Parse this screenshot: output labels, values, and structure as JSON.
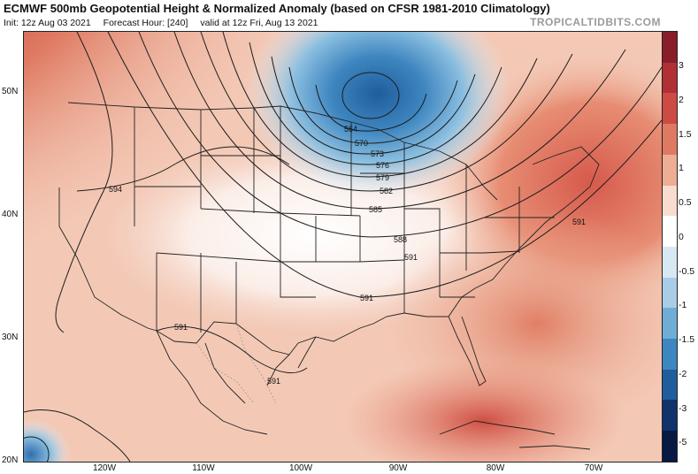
{
  "header": {
    "title": "ECMWF 500mb Geopotential Height & Normalized Anomaly (based on CFSR 1981-2010 Climatology)",
    "init": "Init: 12z Aug 03 2021",
    "forecast_hour": "Forecast Hour: [240]",
    "valid": "valid at 12z Fri, Aug 13 2021",
    "brand": "TROPICALTIDBITS.COM"
  },
  "axes": {
    "lat_labels": [
      "50N",
      "40N",
      "30N",
      "20N"
    ],
    "lon_labels": [
      "120W",
      "110W",
      "100W",
      "90W",
      "80W",
      "70W"
    ]
  },
  "colorbar": {
    "labels": [
      "3",
      "2",
      "1.5",
      "1",
      "0.5",
      "0",
      "-0.5",
      "-1",
      "-1.5",
      "-2",
      "-3",
      "-5"
    ],
    "colors": [
      "#8a1d2a",
      "#b03036",
      "#cc4b43",
      "#df7a62",
      "#edae93",
      "#f7dccf",
      "#ffffff",
      "#d8e8f2",
      "#a9cde6",
      "#6fadd6",
      "#3e86c0",
      "#1f5d9c",
      "#10336b",
      "#081a44"
    ]
  },
  "contours": {
    "labels": [
      "564",
      "570",
      "573",
      "576",
      "579",
      "582",
      "585",
      "588",
      "591",
      "594",
      "591",
      "591",
      "591",
      "591"
    ]
  }
}
